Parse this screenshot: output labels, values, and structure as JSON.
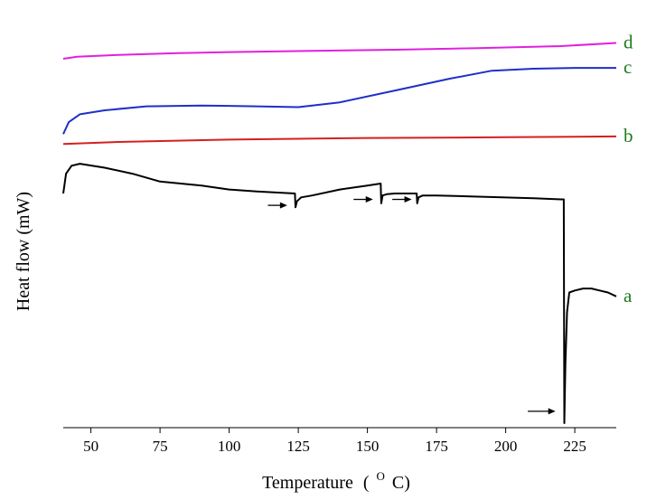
{
  "chart_data": {
    "type": "line",
    "title": "",
    "xlabel": "Temperature",
    "xlabel_unit": "O",
    "xlabel_unit_tail": "C)",
    "xlabel_open": "(",
    "ylabel": "Heat flow (mW)",
    "xlim": [
      40,
      240
    ],
    "x_ticks": [
      50,
      75,
      100,
      125,
      150,
      175,
      200,
      225
    ],
    "x_tick_labels": [
      "50",
      "75",
      "100",
      "125",
      "150",
      "175",
      "200",
      "225"
    ],
    "y_ticks_shown": false,
    "grid": false,
    "label_color": "#1f7a1f",
    "series": [
      {
        "name": "d",
        "color": "#e020e0",
        "x": [
          40,
          45,
          60,
          80,
          100,
          130,
          160,
          190,
          220,
          240
        ],
        "y": [
          0.92,
          0.925,
          0.93,
          0.934,
          0.937,
          0.94,
          0.943,
          0.947,
          0.952,
          0.96
        ]
      },
      {
        "name": "c",
        "color": "#1f2fc8",
        "x": [
          40,
          42,
          46,
          55,
          70,
          90,
          110,
          125,
          140,
          160,
          180,
          195,
          210,
          225,
          240
        ],
        "y": [
          0.73,
          0.76,
          0.78,
          0.79,
          0.8,
          0.802,
          0.8,
          0.798,
          0.81,
          0.84,
          0.87,
          0.89,
          0.895,
          0.897,
          0.897
        ]
      },
      {
        "name": "b",
        "color": "#d42020",
        "x": [
          40,
          60,
          100,
          150,
          200,
          240
        ],
        "y": [
          0.705,
          0.71,
          0.716,
          0.72,
          0.722,
          0.724
        ]
      },
      {
        "name": "a",
        "color": "#000000",
        "x": [
          40,
          41,
          43,
          46,
          55,
          65,
          75,
          90,
          100,
          110,
          123.8,
          124,
          124.5,
          126,
          130,
          140,
          150,
          154.8,
          155,
          155.5,
          157,
          160,
          167.8,
          168,
          168.5,
          170,
          175,
          190,
          210,
          220,
          221,
          221.2,
          221.6,
          222.2,
          223,
          225,
          228,
          231,
          234,
          237,
          240
        ],
        "y": [
          0.58,
          0.63,
          0.65,
          0.655,
          0.645,
          0.63,
          0.61,
          0.6,
          0.59,
          0.585,
          0.58,
          0.545,
          0.56,
          0.57,
          0.575,
          0.59,
          0.6,
          0.605,
          0.555,
          0.575,
          0.578,
          0.58,
          0.58,
          0.555,
          0.57,
          0.575,
          0.575,
          0.572,
          0.568,
          0.565,
          0.565,
          0.0,
          0.15,
          0.28,
          0.33,
          0.335,
          0.34,
          0.34,
          0.335,
          0.33,
          0.32
        ]
      }
    ],
    "annotations": [
      {
        "type": "arrow",
        "x_from": 114,
        "x_to": 121,
        "y": 0.55
      },
      {
        "type": "arrow",
        "x_from": 145,
        "x_to": 152,
        "y": 0.565
      },
      {
        "type": "arrow",
        "x_from": 159,
        "x_to": 166,
        "y": 0.565
      },
      {
        "type": "arrow",
        "x_from": 208,
        "x_to": 218,
        "y": 0.03
      }
    ],
    "y_range": [
      0,
      1
    ]
  }
}
